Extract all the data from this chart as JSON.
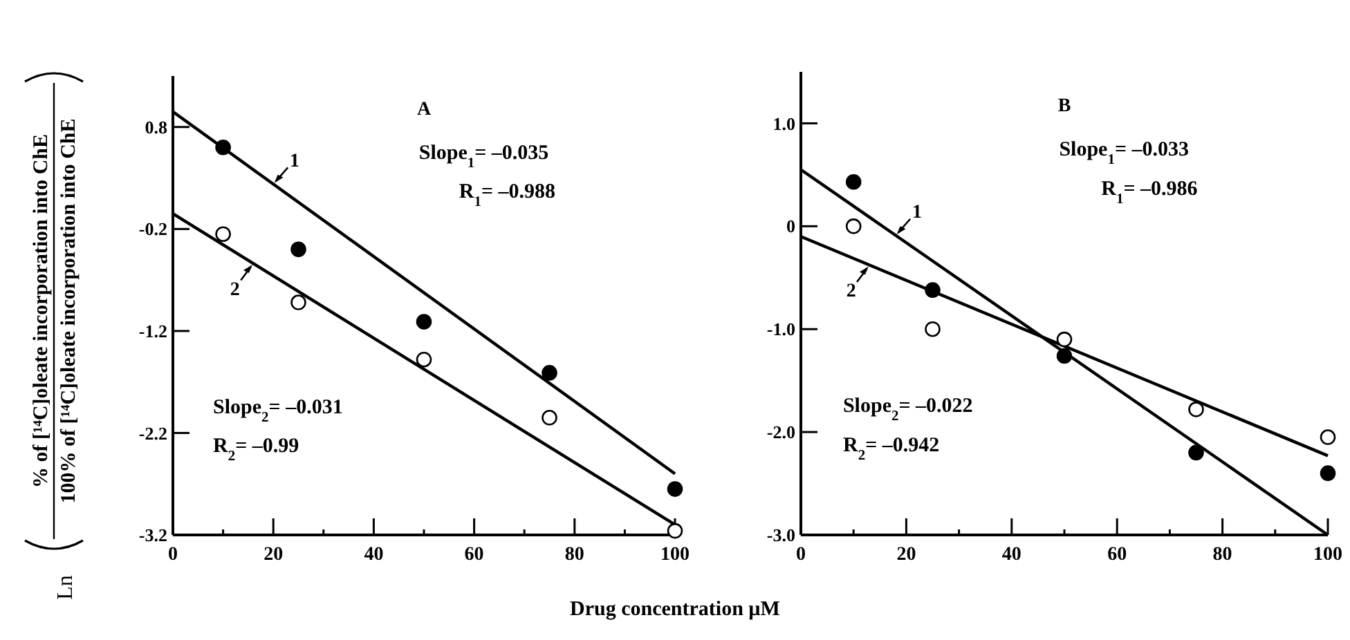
{
  "chart_data": [
    {
      "type": "scatter",
      "xlabel": "Drug concentration µM",
      "ylabel": "Ln",
      "xlim": [
        0,
        100
      ],
      "ylim": [
        -3.2,
        1.3
      ],
      "xticks": [
        0,
        {
          "value": 10,
          "label": null
        },
        20,
        {
          "value": 30,
          "label": null
        },
        40,
        {
          "value": 50,
          "label": null
        },
        60,
        {
          "value": 70,
          "label": null
        },
        80,
        {
          "value": 90,
          "label": null
        },
        100
      ],
      "yticks": [
        0.8,
        -0.2,
        -1.2,
        -2.2,
        -3.2
      ],
      "grid": false,
      "series": [
        {
          "type": "scatter",
          "marker": "circle",
          "color": "#000000",
          "x": [
            10,
            25,
            50,
            75,
            100
          ],
          "values": [
            0.6,
            -0.4,
            -1.11,
            -1.61,
            -2.75
          ]
        },
        {
          "type": "scatter",
          "marker": "circle",
          "color": "#ffffff",
          "x": [
            10,
            25,
            50,
            75,
            100
          ],
          "values": [
            -0.25,
            -0.92,
            -1.48,
            -2.05,
            -3.16
          ]
        },
        {
          "type": "line",
          "marker": "none",
          "color": "#000000",
          "x": [
            0,
            100
          ],
          "values": [
            0.95,
            -2.6
          ]
        },
        {
          "type": "line",
          "marker": "none",
          "color": "#000000",
          "x": [
            0,
            100
          ],
          "values": [
            -0.05,
            -3.1
          ]
        }
      ],
      "annotations": [
        "A",
        "Slope$_{1}$= –0.035",
        "R$_{1}$= –0.988",
        "Slope$_{2}$= –0.031",
        "R$_{2}$= –0.99",
        "% of [¹⁴C]oleate incorporation into ChE",
        "100% of [¹⁴C]oleate incorporation into ChE",
        {
          "text": "1",
          "x": 20,
          "y": 0.24
        },
        {
          "text": "2",
          "x": 16,
          "y": -0.54
        }
      ]
    },
    {
      "type": "scatter",
      "xlim": [
        0,
        100
      ],
      "ylim": [
        -3,
        1.5
      ],
      "xticks": [
        0,
        {
          "value": 10,
          "label": null
        },
        20,
        {
          "value": 30,
          "label": null
        },
        40,
        {
          "value": 50,
          "label": null
        },
        60,
        {
          "value": 70,
          "label": null
        },
        80,
        {
          "value": 90,
          "label": null
        },
        100
      ],
      "yticks": [
        {
          "value": 1,
          "label": "1.0"
        },
        0,
        {
          "value": -1,
          "label": "-1.0"
        },
        {
          "value": -2,
          "label": "-2.0"
        },
        {
          "value": -3,
          "label": "-3.0"
        }
      ],
      "grid": false,
      "series": [
        {
          "type": "scatter",
          "marker": "circle",
          "color": "#000000",
          "x": [
            10,
            25,
            50,
            75,
            100
          ],
          "values": [
            0.43,
            -0.62,
            -1.26,
            -2.2,
            -2.4
          ]
        },
        {
          "type": "scatter",
          "marker": "circle",
          "color": "#ffffff",
          "x": [
            10,
            25,
            50,
            75,
            100
          ],
          "values": [
            0,
            -1.0,
            -1.1,
            -1.78,
            -2.05
          ]
        },
        {
          "type": "line",
          "marker": "none",
          "color": "#000000",
          "x": [
            0,
            100
          ],
          "values": [
            0.55,
            -3.0
          ]
        },
        {
          "type": "line",
          "marker": "none",
          "color": "#000000",
          "x": [
            0,
            100
          ],
          "values": [
            -0.1,
            -2.23
          ]
        }
      ],
      "annotations": [
        "B",
        "Slope$_{1}$= –0.033",
        "R$_{1}$= –0.986",
        "Slope$_{2}$= –0.022",
        "R$_{2}$= –0.942",
        {
          "text": "1",
          "x": 18,
          "y": -0.09
        },
        {
          "text": "2",
          "x": 13,
          "y": -0.38
        }
      ]
    }
  ]
}
